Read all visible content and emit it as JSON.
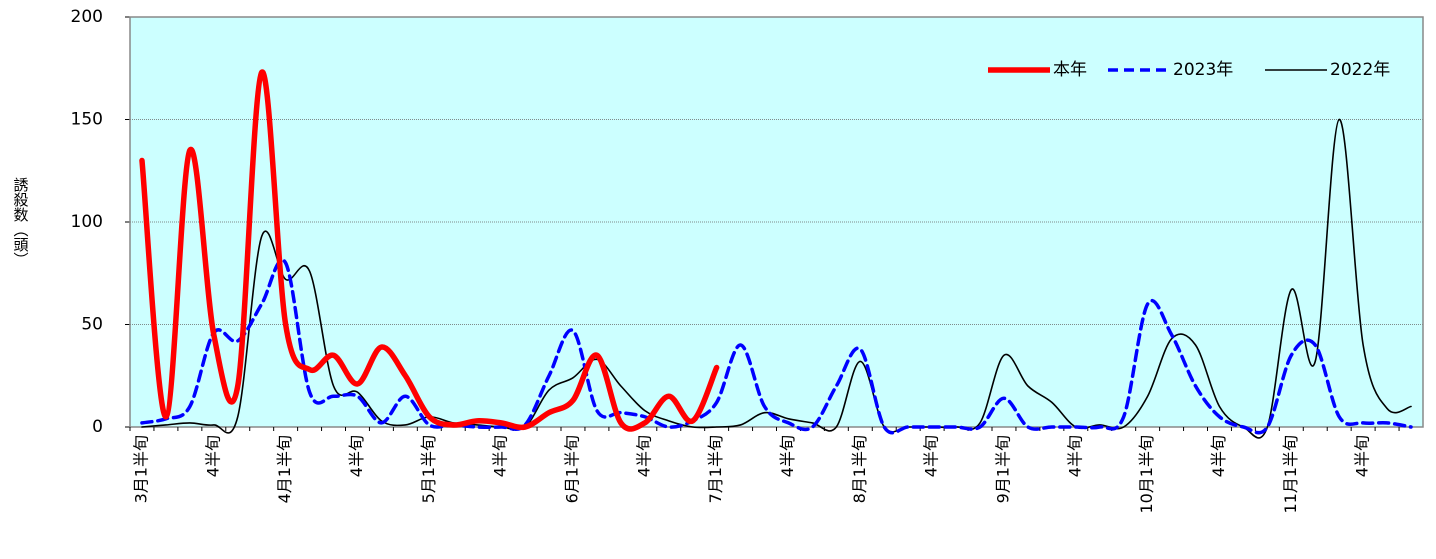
{
  "chart_data": {
    "type": "line",
    "y_label": "誘殺数（頭）",
    "categories": [
      "3月1半旬",
      null,
      null,
      "4半旬",
      null,
      null,
      "4月1半旬",
      null,
      null,
      "4半旬",
      null,
      null,
      "5月1半旬",
      null,
      null,
      "4半旬",
      null,
      null,
      "6月1半旬",
      null,
      null,
      "4半旬",
      null,
      null,
      "7月1半旬",
      null,
      null,
      "4半旬",
      null,
      null,
      "8月1半旬",
      null,
      null,
      "4半旬",
      null,
      null,
      "9月1半旬",
      null,
      null,
      "4半旬",
      null,
      null,
      "10月1半旬",
      null,
      null,
      "4半旬",
      null,
      null,
      "11月1半旬",
      null,
      null,
      "4半旬",
      null,
      null
    ],
    "series": [
      {
        "name": "本年",
        "color": "#ff0000",
        "values": [
          130,
          5,
          135,
          45,
          20,
          173,
          50,
          28,
          35,
          21,
          39,
          25,
          5,
          1,
          3,
          2,
          0,
          7,
          13,
          35,
          2,
          2,
          15,
          3,
          29,
          null,
          null,
          null,
          null,
          null,
          null,
          null,
          null,
          null,
          null,
          null,
          null,
          null,
          null,
          null,
          null,
          null,
          null,
          null,
          null,
          null,
          null,
          null,
          null,
          null,
          null,
          null,
          null,
          null
        ]
      },
      {
        "name": "2023年",
        "color": "#0000ff",
        "values": [
          2,
          4,
          10,
          46,
          42,
          60,
          80,
          17,
          15,
          15,
          2,
          15,
          1,
          1,
          0,
          0,
          1,
          25,
          47,
          8,
          7,
          5,
          0,
          3,
          12,
          40,
          10,
          2,
          0,
          20,
          38,
          0,
          0,
          0,
          0,
          0,
          14,
          0,
          0,
          0,
          0,
          5,
          60,
          45,
          20,
          5,
          0,
          0,
          35,
          40,
          5,
          2,
          2,
          0
        ]
      },
      {
        "name": "2022年",
        "color": "#000000",
        "values": [
          0,
          1,
          2,
          1,
          5,
          93,
          72,
          76,
          20,
          17,
          3,
          1,
          5,
          2,
          1,
          0,
          0,
          18,
          24,
          33,
          20,
          8,
          3,
          0,
          0,
          1,
          7,
          4,
          2,
          0,
          32,
          0,
          0,
          0,
          0,
          2,
          35,
          20,
          12,
          0,
          1,
          0,
          15,
          43,
          40,
          10,
          0,
          0,
          67,
          32,
          150,
          40,
          9,
          10
        ]
      }
    ],
    "ylim": [
      0,
      200
    ],
    "yticks": [
      0,
      50,
      100,
      150,
      200
    ],
    "grid": true,
    "legend": "top-right",
    "background": "#ccffff"
  }
}
